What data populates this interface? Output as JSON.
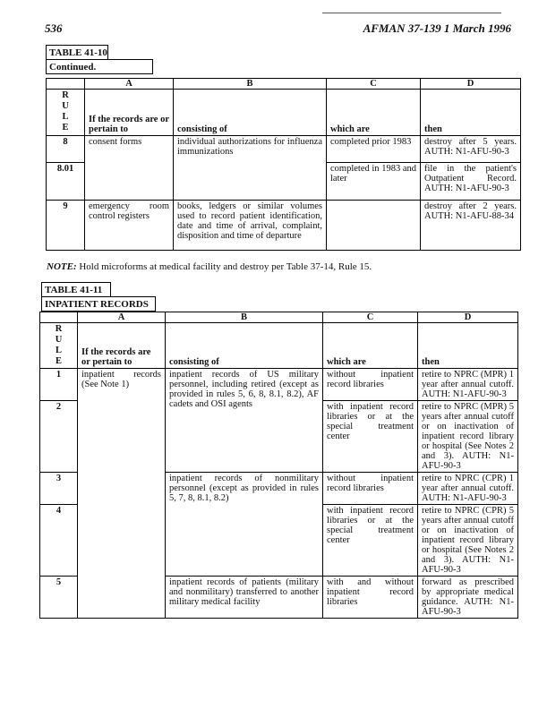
{
  "header": {
    "page_number": "536",
    "title": "AFMAN 37-139   1 March 1996"
  },
  "table1": {
    "label": "TABLE 41-10",
    "continued": "Continued.",
    "letters": [
      "A",
      "B",
      "C",
      "D"
    ],
    "rule_header": "R\nU\nL\nE",
    "headers": [
      "If the records are or pertain to",
      "consisting of",
      "which are",
      "then"
    ],
    "rows": [
      {
        "rule": "8",
        "a": "consent forms",
        "b": "individual authorizations for influenza immunizations",
        "c": "completed prior 1983",
        "d": "destroy after 5 years. AUTH: N1-AFU-90-3"
      },
      {
        "rule": "8.01",
        "c": "completed in 1983 and later",
        "d": "file in the patient's Outpatient Record. AUTH: N1-AFU-90-3"
      },
      {
        "rule": "9",
        "a": "emergency room control registers",
        "b": "books, ledgers or similar volumes used to record patient identification, date and time of arrival, complaint, disposition and time of departure",
        "c": "",
        "d": "destroy after 2 years. AUTH: N1-AFU-88-34"
      }
    ]
  },
  "note": {
    "label": "NOTE:",
    "text": "Hold microforms at medical facility and destroy per Table 37-14, Rule 15."
  },
  "table2": {
    "label": "TABLE 41-11",
    "subtitle": "INPATIENT RECORDS",
    "letters": [
      "A",
      "B",
      "C",
      "D"
    ],
    "rule_header": "R\nU\nL\nE",
    "headers": [
      "If the records are or pertain to",
      "consisting of",
      "which are",
      "then"
    ],
    "a_all": "inpatient records (See Note 1)",
    "rows": [
      {
        "rule": "1",
        "b": "inpatient records of US military personnel, including retired (except as provided in rules 5, 6, 8, 8.1, 8.2), AF cadets and OSI agents",
        "c": "without inpatient record libraries",
        "d": "retire to NPRC (MPR) 1 year after annual cutoff. AUTH: N1-AFU-90-3"
      },
      {
        "rule": "2",
        "c": "with inpatient record libraries or at the special treatment center",
        "d": "retire to NPRC (MPR) 5 years after annual cutoff or on inactivation of inpatient record library or hospital (See Notes 2 and 3). AUTH: N1-AFU-90-3"
      },
      {
        "rule": "3",
        "b": "inpatient records of nonmilitary personnel (except as provided in rules 5, 7, 8, 8.1, 8.2)",
        "c": "without inpatient record libraries",
        "d": "retire to NPRC (CPR) 1 year after annual cutoff. AUTH: N1-AFU-90-3"
      },
      {
        "rule": "4",
        "c": "with inpatient record libraries or at the special treatment center",
        "d": "retire to NPRC (CPR) 5 years after annual cutoff or on inactivation of inpatient record library or hospital (See Notes 2 and 3). AUTH: N1-AFU-90-3"
      },
      {
        "rule": "5",
        "b": "inpatient records of patients (military and nonmilitary) transferred to another military medical facility",
        "c": "with and without inpatient record libraries",
        "d": "forward as prescribed by appropriate medical guidance. AUTH: N1-AFU-90-3"
      }
    ]
  }
}
